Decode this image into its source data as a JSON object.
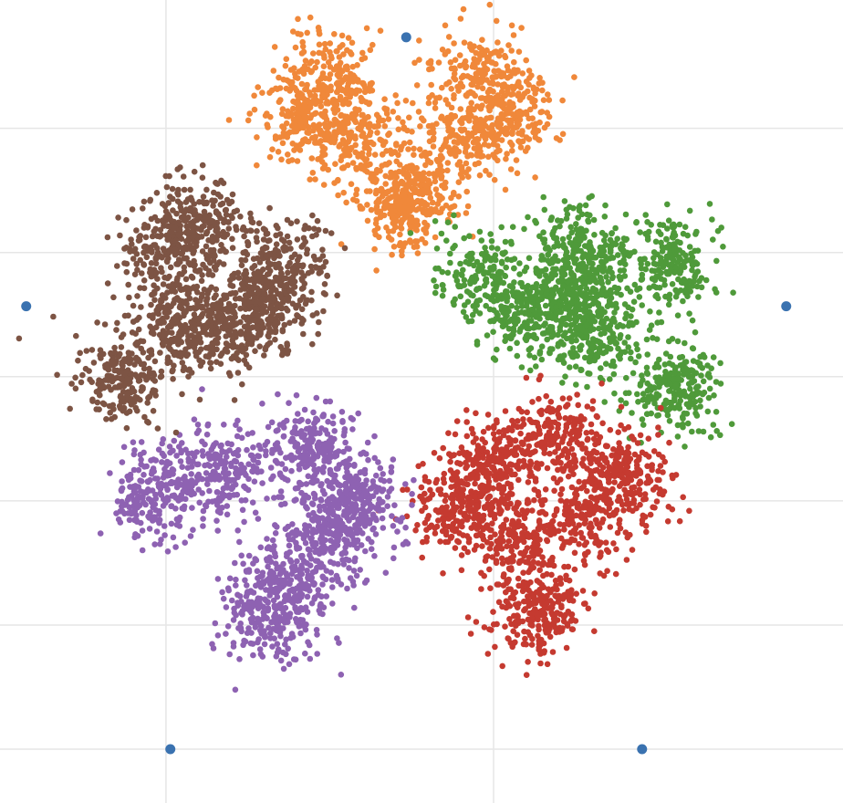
{
  "chart_data": {
    "type": "scatter",
    "title": "",
    "xlabel": "",
    "ylabel": "",
    "grid": true,
    "legend": "none",
    "xlim": [
      -0.93,
      1.0
    ],
    "ylim": [
      -1.13,
      0.81
    ],
    "grid_x": [
      -0.55,
      0.2
    ],
    "grid_y": [
      -1.0,
      -0.7,
      -0.4,
      -0.1,
      0.2,
      0.5
    ],
    "anchor_points": {
      "color": "#3a72b0",
      "points": [
        [
          0.0,
          0.72
        ],
        [
          -0.87,
          0.07
        ],
        [
          0.87,
          0.07
        ],
        [
          -0.54,
          -1.0
        ],
        [
          0.54,
          -1.0
        ]
      ]
    },
    "series": [
      {
        "color": "#f0883a",
        "center": [
          0.0,
          0.33
        ],
        "spread": 0.27,
        "arms": [
          [
            0.0,
            0.0
          ],
          [
            -0.17,
            0.3
          ],
          [
            0.17,
            0.3
          ],
          [
            -0.12,
            0.15
          ],
          [
            0.12,
            0.15
          ],
          [
            0.0,
            0.0
          ],
          [
            -0.23,
            0.2
          ],
          [
            0.23,
            0.2
          ]
        ]
      },
      {
        "color": "#4f9a3a",
        "center": [
          0.28,
          0.05
        ],
        "spread": 0.26,
        "arms": [
          [
            0.0,
            0.0
          ],
          [
            0.32,
            0.12
          ],
          [
            0.33,
            -0.18
          ],
          [
            0.1,
            0.05
          ],
          [
            0.15,
            -0.05
          ],
          [
            -0.1,
            0.1
          ],
          [
            0.12,
            0.15
          ]
        ]
      },
      {
        "color": "#c53a30",
        "center": [
          0.2,
          -0.3
        ],
        "spread": 0.27,
        "arms": [
          [
            0.0,
            0.0
          ],
          [
            0.3,
            -0.04
          ],
          [
            0.1,
            -0.37
          ],
          [
            0.15,
            0.05
          ],
          [
            -0.07,
            -0.12
          ],
          [
            0.06,
            -0.2
          ],
          [
            0.2,
            -0.15
          ]
        ]
      },
      {
        "color": "#8e62b2",
        "center": [
          -0.22,
          -0.28
        ],
        "spread": 0.27,
        "arms": [
          [
            0.0,
            0.0
          ],
          [
            -0.35,
            -0.1
          ],
          [
            -0.1,
            -0.4
          ],
          [
            -0.2,
            -0.05
          ],
          [
            0.05,
            -0.2
          ],
          [
            0.1,
            -0.12
          ],
          [
            -0.05,
            -0.32
          ]
        ]
      },
      {
        "color": "#7d5444",
        "center": [
          -0.32,
          0.07
        ],
        "spread": 0.27,
        "arms": [
          [
            0.0,
            0.0
          ],
          [
            -0.22,
            0.12
          ],
          [
            -0.32,
            -0.17
          ],
          [
            0.03,
            0.1
          ],
          [
            -0.1,
            -0.05
          ],
          [
            -0.15,
            0.2
          ],
          [
            -0.2,
            -0.05
          ]
        ]
      }
    ]
  }
}
